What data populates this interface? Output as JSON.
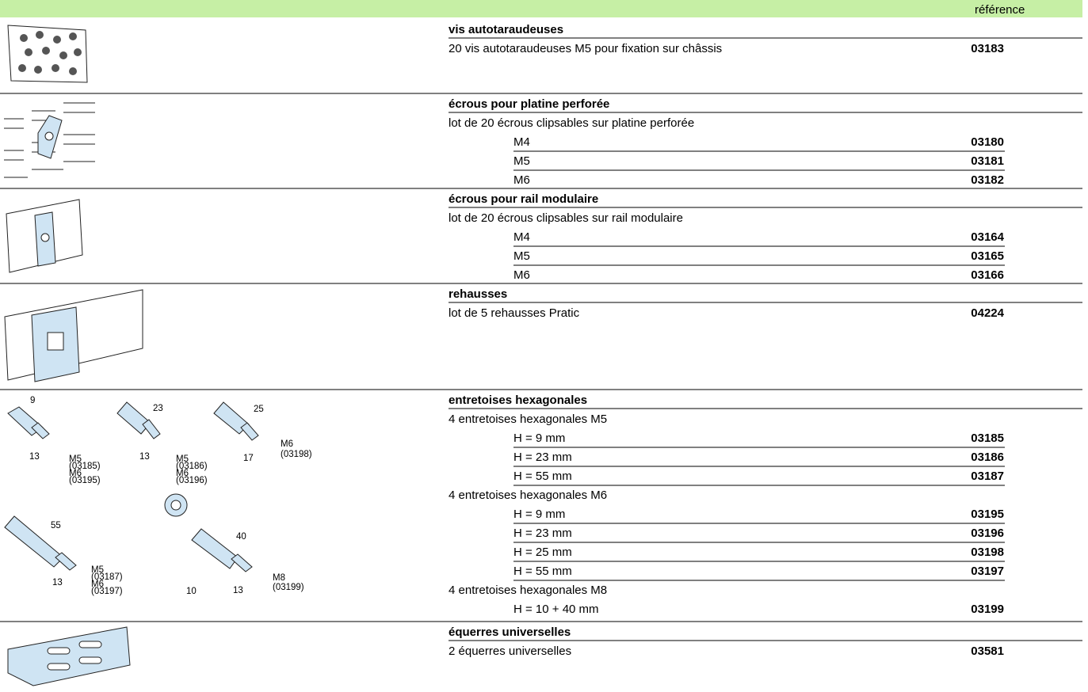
{
  "header": {
    "reference_label": "référence"
  },
  "sections": [
    {
      "title": "vis autotaraudeuses",
      "groups": [
        {
          "label": "20 vis autotaraudeuses M5 pour fixation sur châssis",
          "ref": "03183"
        }
      ]
    },
    {
      "title": "écrous pour platine perforée",
      "groups": [
        {
          "label": "lot de 20 écrous clipsables sur platine perforée",
          "variants": [
            {
              "label": "M4",
              "ref": "03180"
            },
            {
              "label": "M5",
              "ref": "03181"
            },
            {
              "label": "M6",
              "ref": "03182"
            }
          ]
        }
      ]
    },
    {
      "title": "écrous pour rail modulaire",
      "groups": [
        {
          "label": "lot de 20 écrous clipsables sur rail modulaire",
          "variants": [
            {
              "label": "M4",
              "ref": "03164"
            },
            {
              "label": "M5",
              "ref": "03165"
            },
            {
              "label": "M6",
              "ref": "03166"
            }
          ]
        }
      ]
    },
    {
      "title": "rehausses",
      "groups": [
        {
          "label": "lot de 5 rehausses Pratic",
          "ref": "04224"
        }
      ]
    },
    {
      "title": "entretoises hexagonales",
      "groups": [
        {
          "label": "4 entretoises hexagonales M5",
          "variants": [
            {
              "label": "H = 9 mm",
              "ref": "03185"
            },
            {
              "label": "H = 23 mm",
              "ref": "03186"
            },
            {
              "label": "H = 55 mm",
              "ref": "03187"
            }
          ]
        },
        {
          "label": "4 entretoises hexagonales M6",
          "variants": [
            {
              "label": "H = 9 mm",
              "ref": "03195"
            },
            {
              "label": "H = 23 mm",
              "ref": "03196"
            },
            {
              "label": "H = 25 mm",
              "ref": "03198"
            },
            {
              "label": "H = 55 mm",
              "ref": "03197"
            }
          ]
        },
        {
          "label": "4 entretoises hexagonales M8",
          "variants": [
            {
              "label": "H = 10 + 40 mm",
              "ref": "03199"
            }
          ]
        }
      ],
      "figure_labels": [
        "9",
        "13",
        "M5",
        "(03185)",
        "M6",
        "(03195)",
        "23",
        "13",
        "M5",
        "(03186)",
        "M6",
        "(03196)",
        "25",
        "17",
        "M6",
        "(03198)",
        "55",
        "13",
        "M5",
        "(03187)",
        "M6",
        "(03197)",
        "10",
        "40",
        "13",
        "M8",
        "(03199)"
      ]
    },
    {
      "title": "équerres universelles",
      "groups": [
        {
          "label": "2 équerres universelles",
          "ref": "03581"
        }
      ]
    }
  ]
}
